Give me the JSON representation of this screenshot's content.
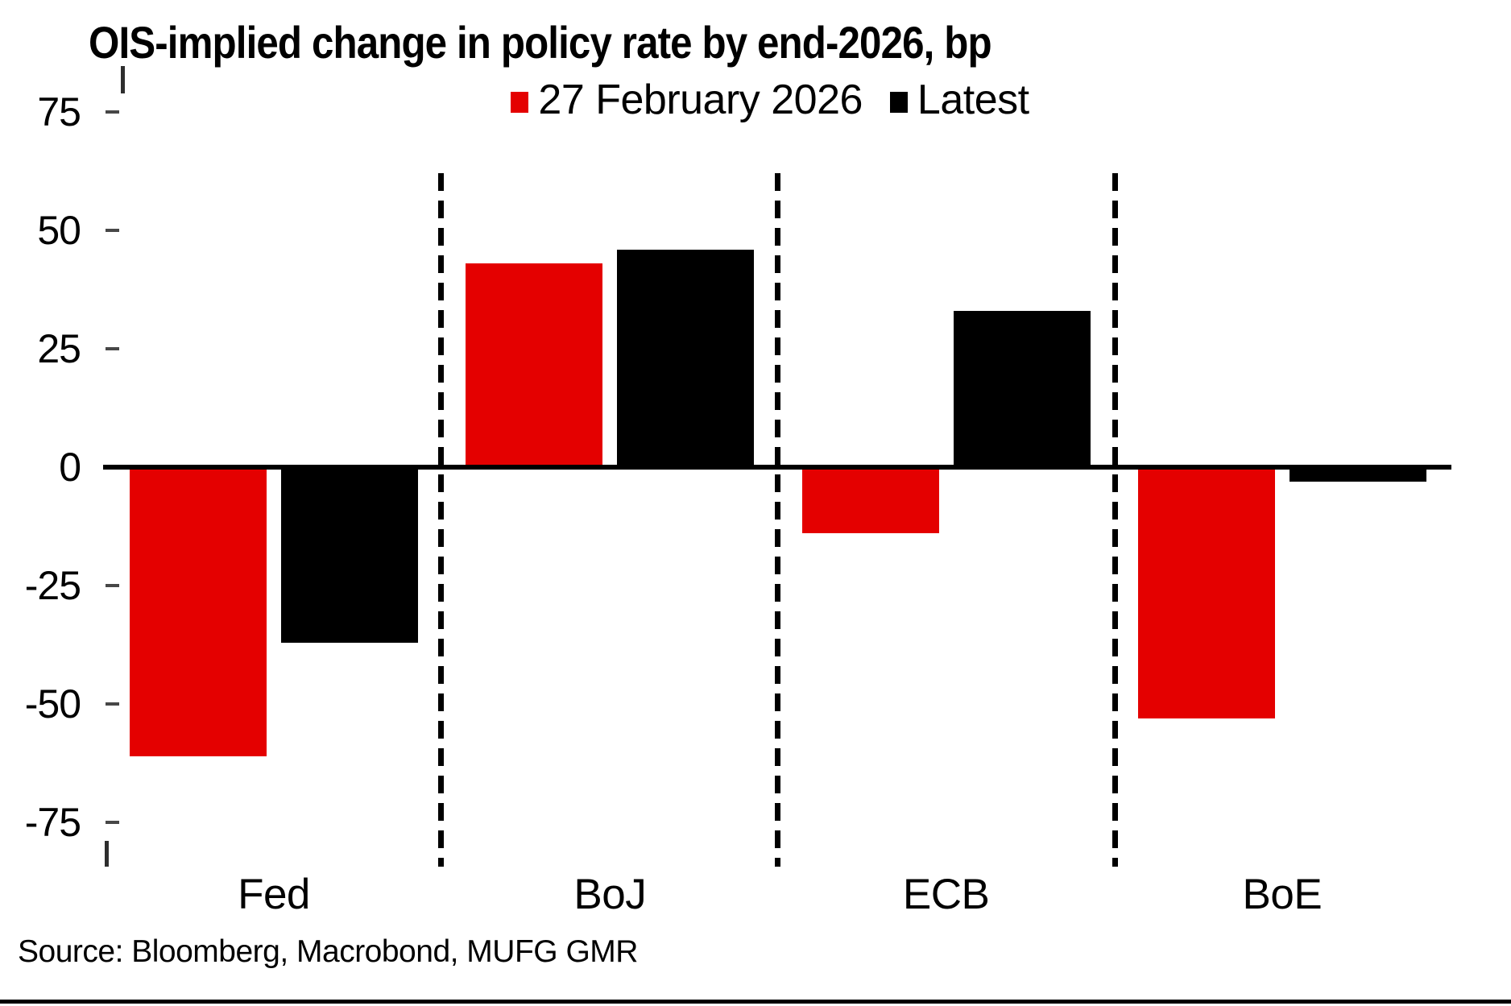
{
  "title": "OIS-implied change in policy rate by end-2026, bp",
  "legend": {
    "items": [
      {
        "label": "27 February 2026",
        "color": "#e40000"
      },
      {
        "label": "Latest",
        "color": "#000000"
      }
    ]
  },
  "source_note": "Source: Bloomberg, Macrobond, MUFG GMR",
  "chart_data": {
    "type": "bar",
    "title": "OIS-implied change in policy rate by end-2026, bp",
    "unit": "bp",
    "categories": [
      "Fed",
      "BoJ",
      "ECB",
      "BoE"
    ],
    "series": [
      {
        "name": "27 February 2026",
        "color": "#e40000",
        "values": [
          -61,
          43,
          -14,
          -53
        ]
      },
      {
        "name": "Latest",
        "color": "#000000",
        "values": [
          -37,
          46,
          33,
          -3
        ]
      }
    ],
    "yticks": [
      75,
      50,
      25,
      0,
      -25,
      -50,
      -75
    ],
    "ylim": [
      -82,
      82
    ],
    "grid": false,
    "legend_position": "top-center",
    "category_separators": "dashed-vertical-lines",
    "baseline": 0
  }
}
